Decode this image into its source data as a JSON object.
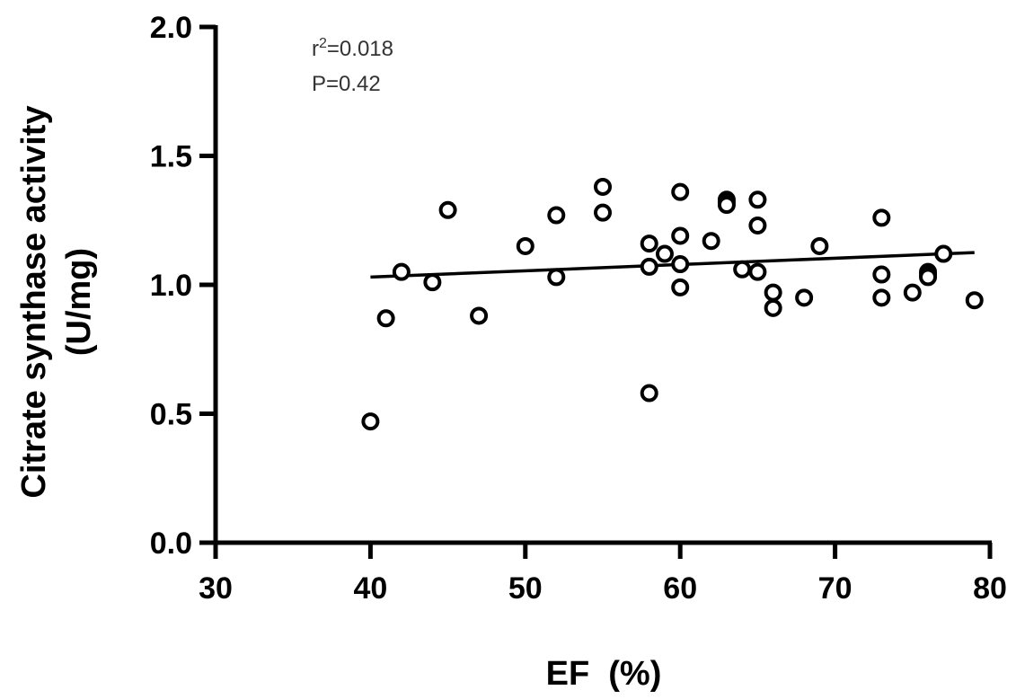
{
  "chart_data": {
    "type": "scatter",
    "title": "",
    "xlabel": "EF  (%)",
    "ylabel_line1": "Citrate synthase activity",
    "ylabel_line2": "(U/mg)",
    "xlim": [
      30,
      80
    ],
    "ylim": [
      0.0,
      2.0
    ],
    "xticks": [
      30,
      40,
      50,
      60,
      70,
      80
    ],
    "xtick_labels": [
      "30",
      "40",
      "50",
      "60",
      "70",
      "80"
    ],
    "yticks": [
      0.0,
      0.5,
      1.0,
      1.5,
      2.0
    ],
    "ytick_labels": [
      "0.0",
      "0.5",
      "1.0",
      "1.5",
      "2.0"
    ],
    "grid": false,
    "marker": "open-circle",
    "annotation": {
      "r_prefix": "r",
      "r_sup": "2",
      "r_value": "=0.018",
      "p_text": "P=0.42"
    },
    "fit_line": {
      "x": [
        40,
        79
      ],
      "y": [
        1.03,
        1.125
      ]
    },
    "points": [
      {
        "x": 40,
        "y": 0.47
      },
      {
        "x": 41,
        "y": 0.87
      },
      {
        "x": 42,
        "y": 1.05
      },
      {
        "x": 44,
        "y": 1.01
      },
      {
        "x": 45,
        "y": 1.29
      },
      {
        "x": 47,
        "y": 0.88
      },
      {
        "x": 50,
        "y": 1.15
      },
      {
        "x": 52,
        "y": 1.27
      },
      {
        "x": 52,
        "y": 1.03
      },
      {
        "x": 55,
        "y": 1.38
      },
      {
        "x": 55,
        "y": 1.28
      },
      {
        "x": 58,
        "y": 1.16
      },
      {
        "x": 58,
        "y": 1.07
      },
      {
        "x": 58,
        "y": 0.58
      },
      {
        "x": 59,
        "y": 1.12
      },
      {
        "x": 60,
        "y": 1.36
      },
      {
        "x": 60,
        "y": 1.19
      },
      {
        "x": 60,
        "y": 1.08
      },
      {
        "x": 60,
        "y": 0.99
      },
      {
        "x": 62,
        "y": 1.17
      },
      {
        "x": 63,
        "y": 1.33
      },
      {
        "x": 63,
        "y": 1.32
      },
      {
        "x": 63,
        "y": 1.31
      },
      {
        "x": 64,
        "y": 1.06
      },
      {
        "x": 65,
        "y": 1.33
      },
      {
        "x": 65,
        "y": 1.23
      },
      {
        "x": 65,
        "y": 1.05
      },
      {
        "x": 66,
        "y": 0.97
      },
      {
        "x": 66,
        "y": 0.91
      },
      {
        "x": 68,
        "y": 0.95
      },
      {
        "x": 69,
        "y": 1.15
      },
      {
        "x": 73,
        "y": 1.26
      },
      {
        "x": 73,
        "y": 1.04
      },
      {
        "x": 73,
        "y": 0.95
      },
      {
        "x": 75,
        "y": 0.97
      },
      {
        "x": 76,
        "y": 1.05
      },
      {
        "x": 76,
        "y": 1.04
      },
      {
        "x": 76,
        "y": 1.03
      },
      {
        "x": 77,
        "y": 1.12
      },
      {
        "x": 79,
        "y": 0.94
      }
    ]
  }
}
